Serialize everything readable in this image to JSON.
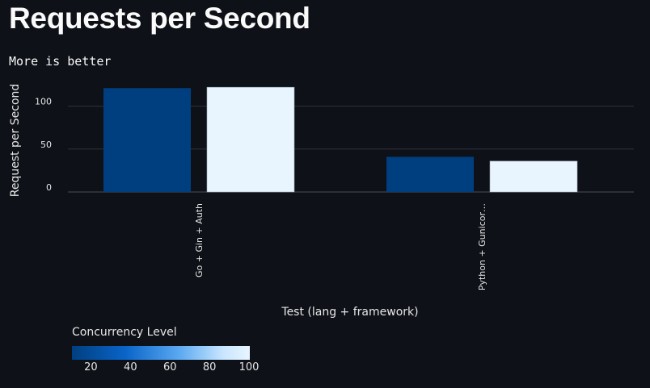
{
  "page": {
    "title": "Requests per Second",
    "subtitle": "More is better"
  },
  "chart_data": {
    "type": "bar",
    "categories": [
      "Go + Gin + Auth",
      "Python + Gunicor…"
    ],
    "series": [
      {
        "concurrency": 10,
        "values": [
          121,
          41
        ]
      },
      {
        "concurrency": 100,
        "values": [
          122,
          36
        ]
      }
    ],
    "xlabel": "Test (lang + framework)",
    "ylabel": "Request per Second",
    "ylim": [
      0,
      125
    ],
    "yticks": [
      0,
      50,
      100
    ],
    "grid": true,
    "legend": {
      "title": "Concurrency Level",
      "type": "color-scale",
      "ticks": [
        20,
        40,
        60,
        80,
        100
      ],
      "domain": [
        10,
        100
      ],
      "colors": [
        "#003f7f",
        "#0a64c8",
        "#59a8f0",
        "#c9e6ff",
        "#e8f5ff"
      ],
      "placement": "bottom-left"
    },
    "colors": {
      "background": "#0e1117",
      "gridline": "#31333f",
      "axis_text": "#e6e6e6",
      "bar_low": "#003f7f",
      "bar_high": "#e8f5ff"
    }
  }
}
